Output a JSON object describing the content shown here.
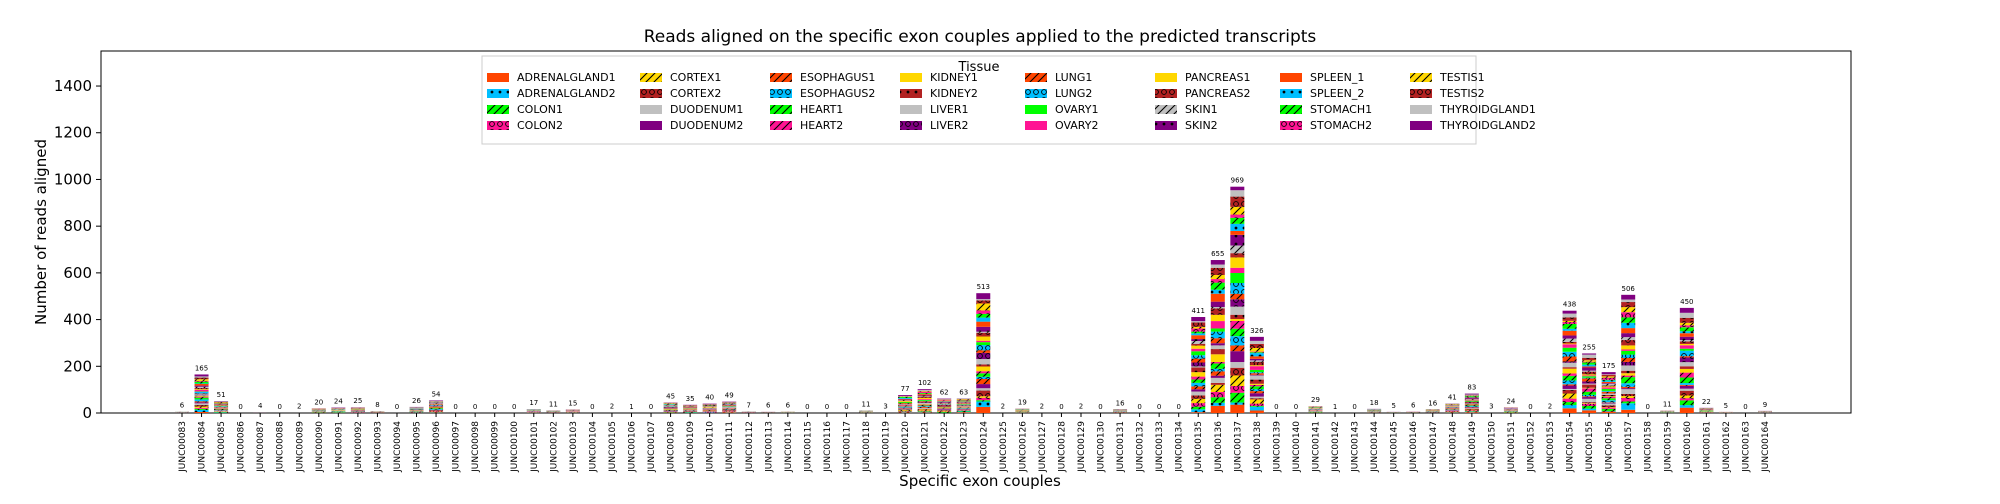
{
  "chart_data": {
    "type": "bar",
    "stacked": true,
    "title": "Reads aligned on the specific exon couples applied to the predicted transcripts",
    "xlabel": "Specific exon couples",
    "ylabel": "Number of reads aligned",
    "ylim": [
      0,
      1550
    ],
    "yticks": [
      0,
      200,
      400,
      600,
      800,
      1000,
      1200,
      1400
    ],
    "grid": false,
    "legend": {
      "title": "Tissue",
      "placement": "top-center",
      "ncol": 8,
      "entries": [
        {
          "name": "ADRENALGLAND1",
          "color": "#ff4500",
          "pattern": "none"
        },
        {
          "name": "ADRENALGLAND2",
          "color": "#00bfff",
          "pattern": "dot"
        },
        {
          "name": "COLON1",
          "color": "#00ff00",
          "pattern": "slash"
        },
        {
          "name": "COLON2",
          "color": "#ff1493",
          "pattern": "ring"
        },
        {
          "name": "CORTEX1",
          "color": "#ffd700",
          "pattern": "slash"
        },
        {
          "name": "CORTEX2",
          "color": "#b22222",
          "pattern": "ring"
        },
        {
          "name": "DUODENUM1",
          "color": "#c0c0c0",
          "pattern": "none"
        },
        {
          "name": "DUODENUM2",
          "color": "#800080",
          "pattern": "none"
        },
        {
          "name": "ESOPHAGUS1",
          "color": "#ff4500",
          "pattern": "slash"
        },
        {
          "name": "ESOPHAGUS2",
          "color": "#00bfff",
          "pattern": "ring"
        },
        {
          "name": "HEART1",
          "color": "#00ff00",
          "pattern": "slash"
        },
        {
          "name": "HEART2",
          "color": "#ff1493",
          "pattern": "slash"
        },
        {
          "name": "KIDNEY1",
          "color": "#ffd700",
          "pattern": "none"
        },
        {
          "name": "KIDNEY2",
          "color": "#b22222",
          "pattern": "dot"
        },
        {
          "name": "LIVER1",
          "color": "#c0c0c0",
          "pattern": "none"
        },
        {
          "name": "LIVER2",
          "color": "#800080",
          "pattern": "ring"
        },
        {
          "name": "LUNG1",
          "color": "#ff4500",
          "pattern": "slash"
        },
        {
          "name": "LUNG2",
          "color": "#00bfff",
          "pattern": "ring"
        },
        {
          "name": "OVARY1",
          "color": "#00ff00",
          "pattern": "none"
        },
        {
          "name": "OVARY2",
          "color": "#ff1493",
          "pattern": "none"
        },
        {
          "name": "PANCREAS1",
          "color": "#ffd700",
          "pattern": "none"
        },
        {
          "name": "PANCREAS2",
          "color": "#b22222",
          "pattern": "ring"
        },
        {
          "name": "SKIN1",
          "color": "#c0c0c0",
          "pattern": "slash"
        },
        {
          "name": "SKIN2",
          "color": "#800080",
          "pattern": "dot"
        },
        {
          "name": "SPLEEN_1",
          "color": "#ff4500",
          "pattern": "none"
        },
        {
          "name": "SPLEEN_2",
          "color": "#00bfff",
          "pattern": "dot"
        },
        {
          "name": "STOMACH1",
          "color": "#00ff00",
          "pattern": "slash"
        },
        {
          "name": "STOMACH2",
          "color": "#ff1493",
          "pattern": "ring"
        },
        {
          "name": "TESTIS1",
          "color": "#ffd700",
          "pattern": "slash"
        },
        {
          "name": "TESTIS2",
          "color": "#b22222",
          "pattern": "ring"
        },
        {
          "name": "THYROIDGLAND1",
          "color": "#c0c0c0",
          "pattern": "none"
        },
        {
          "name": "THYROIDGLAND2",
          "color": "#800080",
          "pattern": "none"
        }
      ]
    },
    "categories": [
      "JUNC00083",
      "JUNC00084",
      "JUNC00085",
      "JUNC00086",
      "JUNC00087",
      "JUNC00088",
      "JUNC00089",
      "JUNC00090",
      "JUNC00091",
      "JUNC00092",
      "JUNC00093",
      "JUNC00094",
      "JUNC00095",
      "JUNC00096",
      "JUNC00097",
      "JUNC00098",
      "JUNC00099",
      "JUNC00100",
      "JUNC00101",
      "JUNC00102",
      "JUNC00103",
      "JUNC00104",
      "JUNC00105",
      "JUNC00106",
      "JUNC00107",
      "JUNC00108",
      "JUNC00109",
      "JUNC00110",
      "JUNC00111",
      "JUNC00112",
      "JUNC00113",
      "JUNC00114",
      "JUNC00115",
      "JUNC00116",
      "JUNC00117",
      "JUNC00118",
      "JUNC00119",
      "JUNC00120",
      "JUNC00121",
      "JUNC00122",
      "JUNC00123",
      "JUNC00124",
      "JUNC00125",
      "JUNC00126",
      "JUNC00127",
      "JUNC00128",
      "JUNC00129",
      "JUNC00130",
      "JUNC00131",
      "JUNC00132",
      "JUNC00133",
      "JUNC00134",
      "JUNC00135",
      "JUNC00136",
      "JUNC00137",
      "JUNC00138",
      "JUNC00139",
      "JUNC00140",
      "JUNC00141",
      "JUNC00142",
      "JUNC00143",
      "JUNC00144",
      "JUNC00145",
      "JUNC00146",
      "JUNC00147",
      "JUNC00148",
      "JUNC00149",
      "JUNC00150",
      "JUNC00151",
      "JUNC00152",
      "JUNC00153",
      "JUNC00154",
      "JUNC00155",
      "JUNC00156",
      "JUNC00157",
      "JUNC00158",
      "JUNC00159",
      "JUNC00160",
      "JUNC00161",
      "JUNC00162",
      "JUNC00163",
      "JUNC00164"
    ],
    "totals": [
      6,
      165,
      51,
      0,
      4,
      0,
      2,
      20,
      24,
      25,
      8,
      0,
      26,
      54,
      0,
      0,
      0,
      0,
      17,
      11,
      15,
      0,
      2,
      1,
      0,
      45,
      35,
      40,
      49,
      7,
      6,
      6,
      0,
      0,
      0,
      11,
      3,
      77,
      102,
      62,
      63,
      513,
      2,
      19,
      2,
      0,
      2,
      0,
      16,
      0,
      0,
      0,
      411,
      655,
      969,
      326,
      0,
      0,
      29,
      1,
      0,
      18,
      5,
      6,
      16,
      41,
      83,
      3,
      24,
      0,
      2,
      438,
      255,
      175,
      506,
      0,
      11,
      450,
      22,
      5,
      0,
      9
    ]
  }
}
